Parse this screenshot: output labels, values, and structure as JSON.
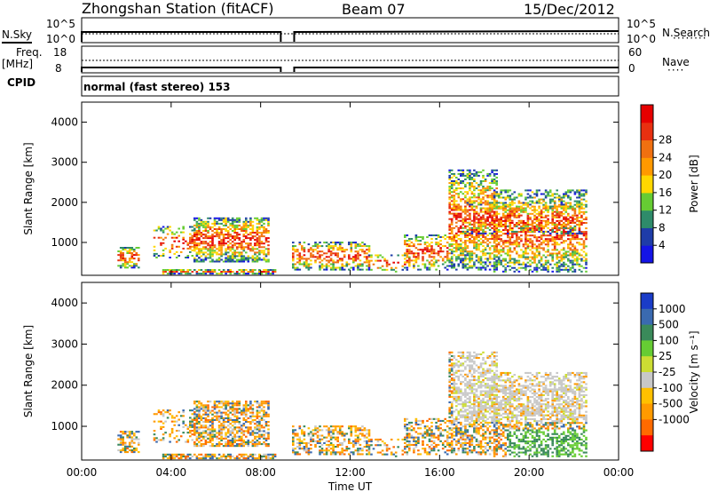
{
  "header": {
    "station": "Zhongshan Station (fitACF)",
    "beam": "Beam 07",
    "date": "15/Dec/2012"
  },
  "status": {
    "nsky_label": "N.Sky",
    "nsky_ticks": [
      "10^5",
      "10^0"
    ],
    "nsearch_label": "N.Search",
    "nsearch_ticks": [
      "10^5",
      "10^0"
    ],
    "freq_label_top": "Freq.",
    "freq_label_unit": "[MHz]",
    "freq_ticks": [
      "18",
      "8"
    ],
    "nave_label": "Nave",
    "nave_ticks": [
      "60",
      "0"
    ],
    "cpid_label": "CPID",
    "cpid_value": "normal (fast stereo) 153"
  },
  "colors": {
    "power": [
      "#1414e6",
      "#1e3ca8",
      "#2e8b6a",
      "#66cc33",
      "#ffd700",
      "#ff9900",
      "#f07010",
      "#e83010",
      "#e60000"
    ],
    "velocity": [
      "#ff0000",
      "#ff6a00",
      "#ff9a00",
      "#ffc000",
      "#c8c8c8",
      "#ccdd33",
      "#66cc33",
      "#3a8a5a",
      "#3a6ab0",
      "#1a3cc8"
    ]
  },
  "chart_data": [
    {
      "type": "heatmap",
      "ylabel": "Slant Range [km]",
      "x_ticks": [
        "00:00",
        "04:00",
        "08:00",
        "12:00",
        "16:00",
        "20:00",
        "00:00"
      ],
      "y_ticks": [
        "1000",
        "2000",
        "3000",
        "4000"
      ],
      "ylim": [
        180,
        4500
      ],
      "colorbar_label": "Power [dB]",
      "colorbar_ticks": [
        "4",
        "8",
        "12",
        "16",
        "20",
        "24",
        "28"
      ],
      "clim": [
        0,
        32
      ]
    },
    {
      "type": "heatmap",
      "ylabel": "Slant Range [km]",
      "xlabel": "Time UT",
      "x_ticks": [
        "00:00",
        "04:00",
        "08:00",
        "12:00",
        "16:00",
        "20:00",
        "00:00"
      ],
      "y_ticks": [
        "1000",
        "2000",
        "3000",
        "4000"
      ],
      "ylim": [
        180,
        4500
      ],
      "colorbar_label": "Velocity [m s⁻¹]",
      "colorbar_ticks": [
        "1000",
        "500",
        "100",
        "25",
        "-25",
        "-100",
        "-500",
        "-1000"
      ]
    }
  ]
}
